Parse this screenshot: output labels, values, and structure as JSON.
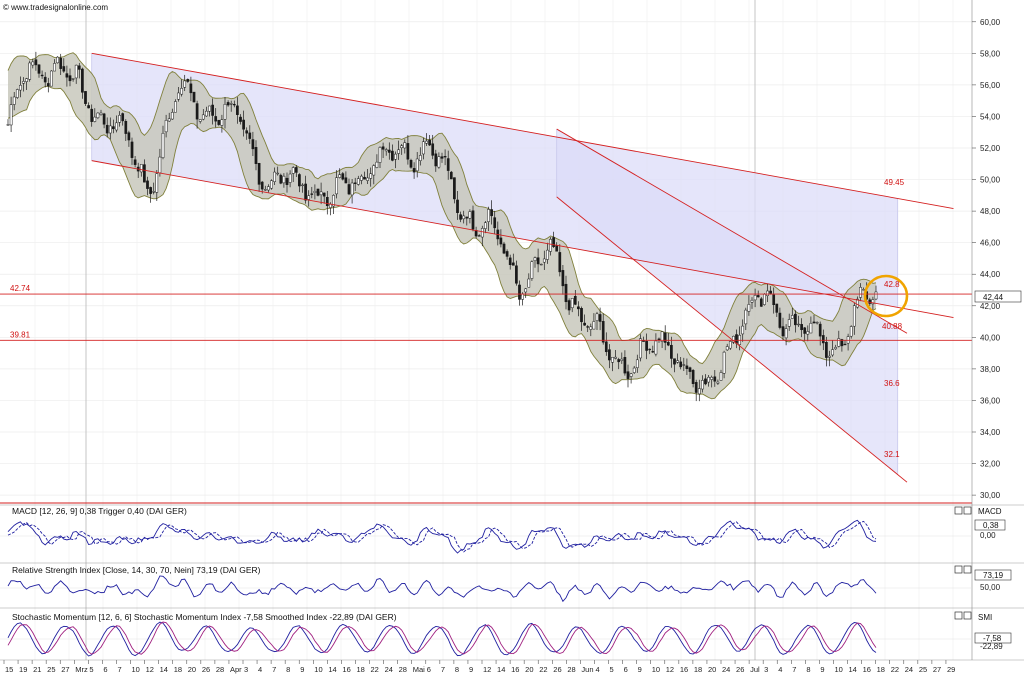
{
  "watermark": "© www.tradesignalonline.com",
  "colors": {
    "candle": "#1a1a1a",
    "bollinger_fill": "#c8c8bc",
    "bollinger_line": "#80803c",
    "channel_line": "#d42020",
    "channel_fill": "#dcdcf8",
    "level_line": "#d42020",
    "indicator": "#2020a0",
    "indicator_signal": "#a02080",
    "highlight": "#f0a400"
  },
  "chart_data": [
    {
      "type": "line",
      "title": "",
      "subtitle": "candlestick price chart with Bollinger bands and trend channels",
      "ylim": [
        29.5,
        61
      ],
      "y_ticks": [
        "30,00",
        "32,00",
        "34,00",
        "36,00",
        "38,00",
        "40,00",
        "42,00",
        "44,00",
        "46,00",
        "48,00",
        "50,00",
        "52,00",
        "54,00",
        "56,00",
        "58,00",
        "60,00"
      ],
      "x_tick_labels": [
        "15",
        "19",
        "21",
        "25",
        "27",
        "Mrz",
        "5",
        "6",
        "7",
        "10",
        "12",
        "14",
        "18",
        "20",
        "26",
        "28",
        "Apr",
        "3",
        "4",
        "7",
        "8",
        "9",
        "10",
        "14",
        "16",
        "18",
        "22",
        "24",
        "28",
        "Mai",
        "6",
        "7",
        "8",
        "9",
        "12",
        "14",
        "16",
        "20",
        "22",
        "26",
        "28",
        "Jun",
        "4",
        "5",
        "6",
        "9",
        "10",
        "12",
        "16",
        "18",
        "20",
        "24",
        "26",
        "Jul",
        "3",
        "4",
        "7",
        "8",
        "9",
        "10",
        "14",
        "16",
        "18",
        "22",
        "24",
        "25",
        "27",
        "29"
      ],
      "last_price_label": "42,44",
      "price_anchors": {
        "x_index": [
          0,
          6,
          15,
          25,
          35,
          45,
          55,
          65,
          75,
          85,
          95,
          105,
          115,
          125,
          135,
          145,
          155,
          165,
          175,
          185,
          195,
          205,
          215,
          225,
          235,
          245,
          255,
          265,
          270,
          275,
          280
        ],
        "close": [
          53.5,
          56.6,
          57.6,
          55.0,
          53.5,
          49.5,
          55.5,
          54.5,
          53.5,
          49.5,
          50.0,
          48.5,
          51.0,
          51.5,
          52.5,
          48.5,
          47.0,
          43.5,
          45.0,
          41.5,
          38.5,
          39.0,
          39.5,
          36.0,
          41.0,
          42.5,
          40.5,
          39.5,
          40.2,
          42.0,
          42.44
        ]
      },
      "bollinger_width": 1.1,
      "channels": [
        {
          "name": "long-term downtrend channel",
          "upper": [
            [
              27,
              58.0
            ],
            [
              287,
              48.8
            ]
          ],
          "lower": [
            [
              27,
              51.2
            ],
            [
              287,
              41.9
            ]
          ]
        },
        {
          "name": "short-term downtrend channel",
          "upper": [
            [
              177,
              53.2
            ],
            [
              287,
              40.6
            ]
          ],
          "lower": [
            [
              177,
              48.9
            ],
            [
              287,
              31.3
            ]
          ]
        }
      ],
      "support_lines": [
        {
          "value": 42.74,
          "label": "42.74"
        },
        {
          "value": 39.81,
          "label": "39.81"
        }
      ],
      "annotations": [
        "49.45",
        "42.8",
        "40.88",
        "36.6",
        "32.1"
      ]
    },
    {
      "type": "line",
      "title": "MACD [12, 26, 9] 0,38 Trigger 0,40 (DAI GER)",
      "side_label": "MACD",
      "last_value": "0,38",
      "y_ticks": [
        "0,00"
      ]
    },
    {
      "type": "line",
      "title": "Relative Strength Index [Close, 14, 30, 70, Nein] 73,19 (DAI GER)",
      "last_value": "73,19",
      "y_ticks": [
        "50,00"
      ]
    },
    {
      "type": "line",
      "title": "Stochastic Momentum [12, 6, 6] Stochastic Momentum Index -7,58 Smoothed Index -22,89 (DAI GER)",
      "side_label": "SMI",
      "last_value": "-7,58",
      "y_ticks": [
        "-22,89"
      ]
    }
  ]
}
